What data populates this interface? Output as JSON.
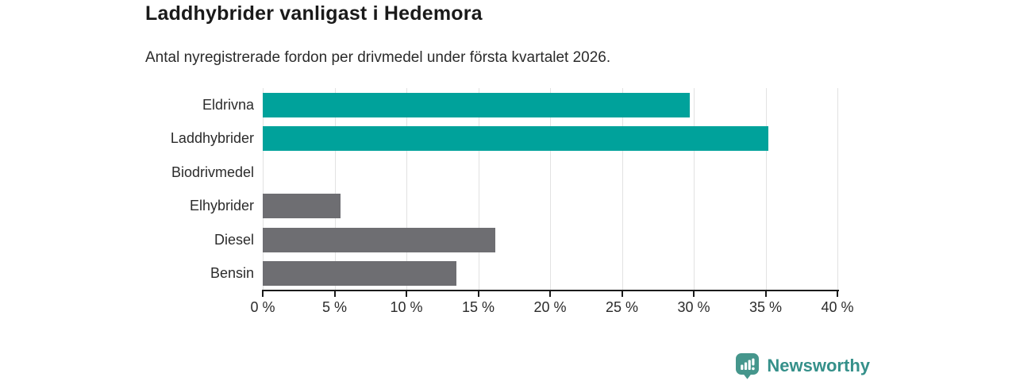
{
  "header": {
    "title": "Laddhybrider vanligast i Hedemora",
    "subtitle": "Antal nyregistrerade fordon per drivmedel under första kvartalet 2026."
  },
  "chart_data": {
    "type": "bar",
    "orientation": "horizontal",
    "title": "Laddhybrider vanligast i Hedemora",
    "subtitle": "Antal nyregistrerade fordon per drivmedel under första kvartalet 2026.",
    "categories": [
      "Eldrivna",
      "Laddhybrider",
      "Biodrivmedel",
      "Elhybrider",
      "Diesel",
      "Bensin"
    ],
    "values": [
      29.7,
      35.2,
      0,
      5.4,
      16.2,
      13.5
    ],
    "unit": "%",
    "bar_colors": [
      "#00a29b",
      "#00a29b",
      "#6e6e72",
      "#6e6e72",
      "#6e6e72",
      "#6e6e72"
    ],
    "xlim": [
      0,
      40
    ],
    "xticks": [
      0,
      5,
      10,
      15,
      20,
      25,
      30,
      35,
      40
    ],
    "xtick_labels": [
      "0 %",
      "5 %",
      "10 %",
      "15 %",
      "20 %",
      "25 %",
      "30 %",
      "35 %",
      "40 %"
    ],
    "grid": true,
    "legend": "none"
  },
  "colors": {
    "accent_teal": "#00a29b",
    "neutral_gray": "#6e6e72",
    "gridline": "#e2e2e2",
    "axis": "#1a1a1a",
    "text": "#2b2b2b",
    "brand_teal": "#35908a"
  },
  "footer": {
    "brand": "Newsworthy",
    "logo_icon": "bar-chart-speech-bubble-icon"
  }
}
